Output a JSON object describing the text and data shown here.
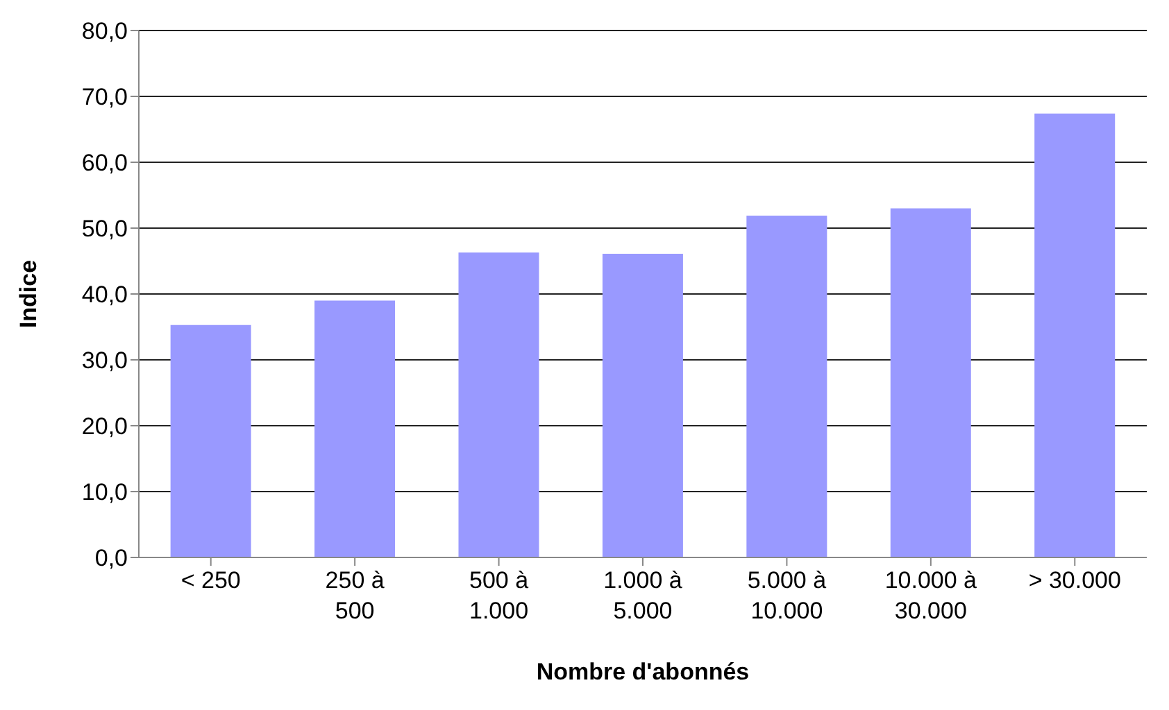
{
  "chart_data": {
    "type": "bar",
    "xlabel": "Nombre d'abonnés",
    "ylabel": "Indice",
    "categories": [
      "< 250",
      "250 à 500",
      "500 à 1.000",
      "1.000 à 5.000",
      "5.000 à 10.000",
      "10.000 à 30.000",
      "> 30.000"
    ],
    "values": [
      35.3,
      39.0,
      46.3,
      46.1,
      51.9,
      53.0,
      67.4
    ],
    "color": "#9999ff",
    "ylim": [
      0,
      80
    ],
    "yticks": [
      {
        "value": 0,
        "label": "0,0"
      },
      {
        "value": 10,
        "label": "10,0"
      },
      {
        "value": 20,
        "label": "20,0"
      },
      {
        "value": 30,
        "label": "30,0"
      },
      {
        "value": 40,
        "label": "40,0"
      },
      {
        "value": 50,
        "label": "50,0"
      },
      {
        "value": 60,
        "label": "60,0"
      },
      {
        "value": 70,
        "label": "70,0"
      },
      {
        "value": 80,
        "label": "80,0"
      }
    ],
    "grid": "y"
  }
}
